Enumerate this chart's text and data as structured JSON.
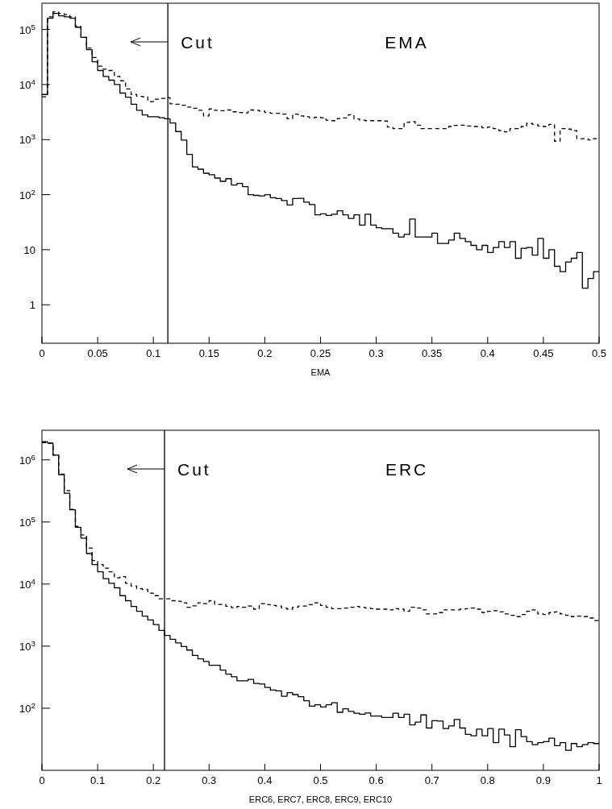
{
  "chart_data": [
    {
      "type": "histogram",
      "title": "EMA",
      "xlabel": "EMA",
      "bins": [
        0,
        0.005,
        0.01,
        0.015,
        0.02,
        0.025,
        0.03,
        0.035,
        0.04,
        0.045,
        0.05,
        0.055,
        0.06,
        0.065,
        0.07,
        0.075,
        0.08,
        0.085,
        0.09,
        0.095,
        0.1,
        0.105,
        0.11,
        0.115,
        0.12,
        0.125,
        0.13,
        0.135,
        0.14,
        0.145,
        0.15,
        0.155,
        0.16,
        0.165,
        0.17,
        0.175,
        0.18,
        0.185,
        0.19,
        0.195,
        0.2,
        0.205,
        0.21,
        0.215,
        0.22,
        0.225,
        0.23,
        0.235,
        0.24,
        0.245,
        0.25,
        0.255,
        0.26,
        0.265,
        0.27,
        0.275,
        0.28,
        0.285,
        0.29,
        0.295,
        0.3,
        0.305,
        0.31,
        0.315,
        0.32,
        0.325,
        0.33,
        0.335,
        0.34,
        0.345,
        0.35,
        0.355,
        0.36,
        0.365,
        0.37,
        0.375,
        0.38,
        0.385,
        0.39,
        0.395,
        0.4,
        0.405,
        0.41,
        0.415,
        0.42,
        0.425,
        0.43,
        0.435,
        0.44,
        0.445,
        0.45,
        0.455,
        0.46,
        0.465,
        0.47,
        0.475,
        0.48,
        0.485,
        0.49,
        0.495,
        0.5
      ],
      "series": [
        {
          "color": "#000000",
          "line_style": "solid",
          "values": [
            6600,
            160000,
            196000,
            177000,
            170000,
            160000,
            110000,
            72000,
            43000,
            26000,
            18000,
            14000,
            12000,
            10000,
            7000,
            5900,
            4400,
            3400,
            2800,
            2600,
            2600,
            2500,
            2400,
            2000,
            1400,
            980,
            540,
            320,
            290,
            245,
            230,
            200,
            175,
            195,
            150,
            160,
            140,
            100,
            97,
            95,
            100,
            88,
            85,
            78,
            65,
            85,
            86,
            73,
            66,
            43,
            45,
            42,
            44,
            51,
            43,
            37,
            43,
            28,
            44,
            28,
            25,
            24,
            24,
            20,
            17,
            19,
            36,
            17,
            17,
            17,
            20,
            13,
            13,
            15,
            20,
            16,
            14,
            12,
            10,
            12,
            8.9,
            11,
            14,
            11,
            14,
            7,
            10.6,
            11,
            8,
            16,
            7,
            10,
            5,
            4,
            6,
            7,
            8.9,
            2,
            3,
            4
          ]
        },
        {
          "color": "#000000",
          "line_style": "dashed",
          "values": [
            6000,
            170000,
            210000,
            196000,
            187000,
            170000,
            115000,
            72000,
            46000,
            31000,
            21500,
            19000,
            18000,
            14000,
            11700,
            8300,
            6600,
            6100,
            6000,
            4900,
            5400,
            5600,
            5800,
            4450,
            4400,
            4200,
            3900,
            3700,
            3400,
            2700,
            3600,
            3400,
            3350,
            3450,
            3200,
            3100,
            3050,
            3450,
            3400,
            3300,
            3100,
            3000,
            3000,
            2900,
            2400,
            2900,
            2700,
            2600,
            2500,
            2550,
            2500,
            2250,
            2210,
            2420,
            2480,
            2830,
            2370,
            2260,
            2210,
            2210,
            2210,
            2170,
            1690,
            1580,
            1580,
            2050,
            2120,
            1830,
            1580,
            1580,
            1580,
            1580,
            1580,
            1730,
            1810,
            1830,
            1770,
            1730,
            1730,
            1640,
            1690,
            1580,
            1460,
            1380,
            1580,
            1580,
            1730,
            1980,
            1890,
            1770,
            1730,
            1890,
            935,
            1580,
            1550,
            1460,
            1040,
            1040,
            990,
            1040
          ]
        }
      ],
      "xlim": [
        0,
        0.5
      ],
      "xticks": [
        0,
        0.05,
        0.1,
        0.15,
        0.2,
        0.25,
        0.3,
        0.35,
        0.4,
        0.45,
        0.5
      ],
      "log": "y",
      "ylim": [
        0.2,
        300000
      ],
      "yticks": [
        1,
        10,
        {
          "value": 100,
          "label": "10$^{2}$"
        },
        {
          "value": 1000,
          "label": "10$^{3}$"
        },
        {
          "value": 10000,
          "label": "10$^{4}$"
        },
        {
          "value": 100000,
          "label": "10$^{5}$"
        }
      ],
      "ref_lines": [
        {
          "axis": "x",
          "value": 0.113,
          "label": "Cut",
          "color": "#000000"
        }
      ],
      "grid": false
    },
    {
      "type": "histogram",
      "title": "ERC",
      "xlabel": "ERC6, ERC7, ERC8, ERC9, ERC10",
      "bins": [
        0,
        0.01,
        0.02,
        0.03,
        0.04,
        0.05,
        0.06,
        0.07,
        0.08,
        0.09,
        0.1,
        0.11,
        0.12,
        0.13,
        0.14,
        0.15,
        0.16,
        0.17,
        0.18,
        0.19,
        0.2,
        0.21,
        0.22,
        0.23,
        0.24,
        0.25,
        0.26,
        0.27,
        0.28,
        0.29,
        0.3,
        0.31,
        0.32,
        0.33,
        0.34,
        0.35,
        0.36,
        0.37,
        0.38,
        0.39,
        0.4,
        0.41,
        0.42,
        0.43,
        0.44,
        0.45,
        0.46,
        0.47,
        0.48,
        0.49,
        0.5,
        0.51,
        0.52,
        0.53,
        0.54,
        0.55,
        0.56,
        0.57,
        0.58,
        0.59,
        0.6,
        0.61,
        0.62,
        0.63,
        0.64,
        0.65,
        0.66,
        0.67,
        0.68,
        0.69,
        0.7,
        0.71,
        0.72,
        0.73,
        0.74,
        0.75,
        0.76,
        0.77,
        0.78,
        0.79,
        0.8,
        0.81,
        0.82,
        0.83,
        0.84,
        0.85,
        0.86,
        0.87,
        0.88,
        0.89,
        0.9,
        0.91,
        0.92,
        0.93,
        0.94,
        0.95,
        0.96,
        0.97,
        0.98,
        0.99,
        1
      ],
      "series": [
        {
          "color": "#000000",
          "line_style": "solid",
          "values": [
            1960000,
            1870000,
            1190000,
            580000,
            290000,
            157000,
            82000,
            55000,
            31000,
            20600,
            15800,
            12200,
            10300,
            8700,
            6500,
            5400,
            4350,
            3640,
            3050,
            2650,
            2220,
            1790,
            1490,
            1290,
            1130,
            985,
            865,
            710,
            625,
            566,
            492,
            492,
            412,
            355,
            321,
            277,
            277,
            291,
            251,
            246,
            216,
            196,
            190,
            156,
            178,
            166,
            153,
            132,
            108,
            114,
            105,
            114,
            123,
            86,
            98,
            89,
            83,
            80,
            84,
            75,
            75,
            71,
            71,
            83,
            71,
            80,
            54,
            60,
            78,
            48,
            63,
            62,
            47,
            52,
            66,
            48,
            38,
            36,
            46,
            36,
            47,
            28,
            46,
            37,
            24,
            45,
            35,
            29,
            26,
            28,
            29,
            33,
            25,
            28,
            21,
            27,
            24,
            26,
            28,
            27
          ]
        },
        {
          "color": "#000000",
          "line_style": "dashed",
          "values": [
            1900000,
            1850000,
            1200000,
            590000,
            320000,
            160000,
            85000,
            62000,
            38000,
            24000,
            20600,
            18000,
            15800,
            12600,
            13200,
            10300,
            9300,
            8450,
            8200,
            7140,
            6500,
            5800,
            5800,
            5400,
            5300,
            5000,
            4230,
            4450,
            5000,
            4850,
            5400,
            4700,
            4700,
            4400,
            4160,
            4350,
            4230,
            4440,
            3940,
            4850,
            4670,
            4530,
            4440,
            4100,
            3940,
            4230,
            4440,
            4440,
            4670,
            5000,
            4530,
            4230,
            4020,
            4020,
            4100,
            4230,
            4350,
            4230,
            4100,
            4020,
            3940,
            3940,
            3830,
            4020,
            3940,
            3640,
            4230,
            4100,
            3830,
            3300,
            3300,
            3470,
            3830,
            3830,
            3830,
            3940,
            4020,
            4100,
            3940,
            3470,
            3640,
            3720,
            3570,
            3300,
            3140,
            2990,
            3230,
            3640,
            3830,
            3300,
            3230,
            3470,
            3570,
            3300,
            3140,
            2990,
            3050,
            2990,
            2840,
            2580
          ]
        }
      ],
      "xlim": [
        0,
        1
      ],
      "xticks": [
        0,
        0.1,
        0.2,
        0.3,
        0.4,
        0.5,
        0.6,
        0.7,
        0.8,
        0.9,
        1
      ],
      "log": "y",
      "ylim": [
        10,
        3000000
      ],
      "yticks": [
        {
          "value": 100,
          "label": "10$^{2}$"
        },
        {
          "value": 1000,
          "label": "10$^{3}$"
        },
        {
          "value": 10000,
          "label": "10$^{4}$"
        },
        {
          "value": 100000,
          "label": "10$^{5}$"
        },
        {
          "value": 1000000,
          "label": "10$^{6}$"
        }
      ],
      "ref_lines": [
        {
          "axis": "x",
          "value": 0.22,
          "label": "Cut",
          "color": "#000000"
        }
      ],
      "grid": false
    }
  ]
}
